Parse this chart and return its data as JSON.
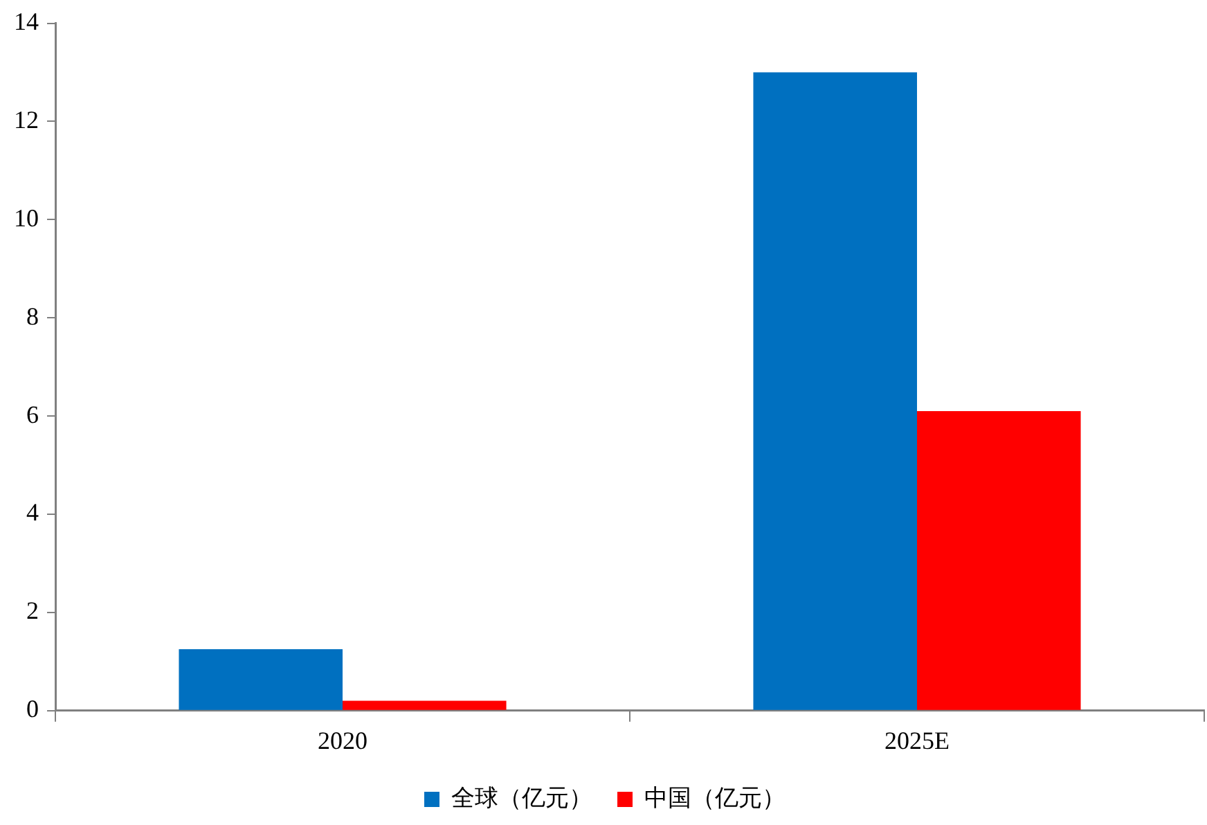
{
  "chart_data": {
    "type": "bar",
    "categories": [
      "2020",
      "2025E"
    ],
    "series": [
      {
        "name": "全球（亿元）",
        "color": "#0070c0",
        "values": [
          1.25,
          13
        ]
      },
      {
        "name": "中国（亿元）",
        "color": "#ff0000",
        "values": [
          0.2,
          6.1
        ]
      }
    ],
    "ylim": [
      0,
      14
    ],
    "yticks": [
      0,
      2,
      4,
      6,
      8,
      10,
      12,
      14
    ],
    "grid": false,
    "legend": "bottom"
  }
}
